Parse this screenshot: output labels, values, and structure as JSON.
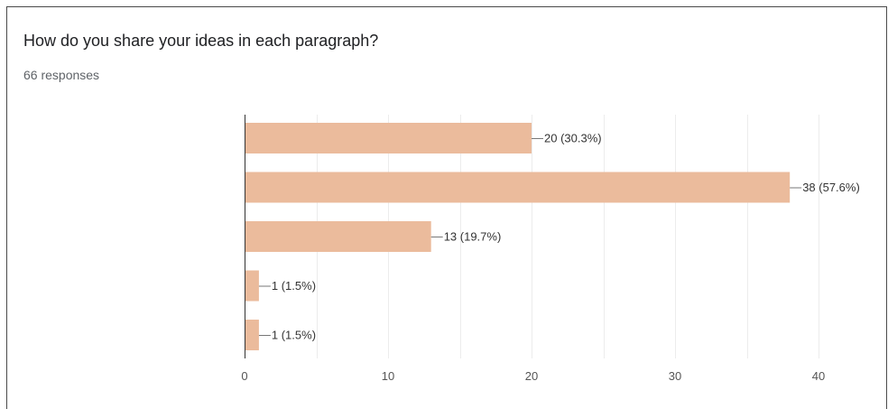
{
  "form_summary": {
    "question": "How do you share your ideas in each paragraph?",
    "responses": "66 responses"
  },
  "colors": {
    "bar": "#ebbb9c",
    "grid": "#ececec",
    "axis": "#333333",
    "leader": "#777777"
  },
  "chart_data": {
    "type": "bar",
    "orientation": "horizontal",
    "categories": [
      "",
      "",
      "",
      "",
      ""
    ],
    "values": [
      20,
      38,
      13,
      1,
      1
    ],
    "data_labels": [
      "20 (30.3%)",
      "38 (57.6%)",
      "13 (19.7%)",
      "1 (1.5%)",
      "1 (1.5%)"
    ],
    "xlim": [
      0,
      40
    ],
    "x_ticks": [
      0,
      10,
      20,
      30,
      40
    ],
    "grid": true,
    "legend": "none"
  }
}
